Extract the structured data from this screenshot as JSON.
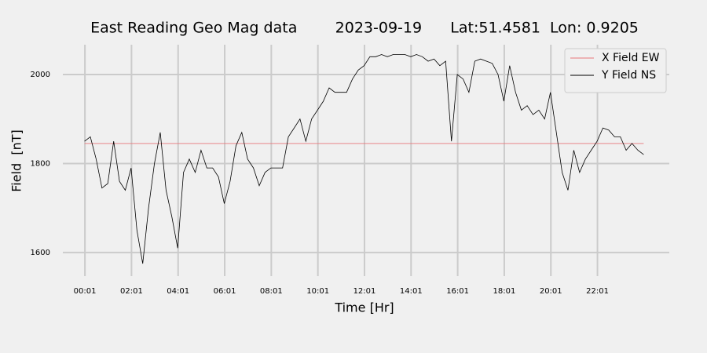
{
  "chart_data": {
    "type": "line",
    "title": "East Reading Geo Mag data        2023-09-19      Lat:51.4581  Lon: 0.9205",
    "x_label": "Time  [Hr]",
    "y_label": "Field  [nT]",
    "xlim": [
      -0.93,
      25.1
    ],
    "ylim": [
      1547,
      2067
    ],
    "xticks": [
      {
        "value": 0.017,
        "label": "00:01"
      },
      {
        "value": 2.017,
        "label": "02:01"
      },
      {
        "value": 4.017,
        "label": "04:01"
      },
      {
        "value": 6.017,
        "label": "06:01"
      },
      {
        "value": 8.017,
        "label": "08:01"
      },
      {
        "value": 10.017,
        "label": "10:01"
      },
      {
        "value": 12.017,
        "label": "12:01"
      },
      {
        "value": 14.017,
        "label": "14:01"
      },
      {
        "value": 16.017,
        "label": "16:01"
      },
      {
        "value": 18.017,
        "label": "18:01"
      },
      {
        "value": 20.017,
        "label": "20:01"
      },
      {
        "value": 22.017,
        "label": "22:01"
      }
    ],
    "yticks": [
      1600,
      1800,
      2000
    ],
    "grid": true,
    "legend": "upper right",
    "series": [
      {
        "name": "X Field EW",
        "color": "#e8767a",
        "x": [
          0,
          24
        ],
        "values": [
          1845,
          1845
        ]
      },
      {
        "name": "Y Field NS",
        "color": "#000000",
        "x": [
          0,
          0.25,
          0.5,
          0.75,
          1,
          1.25,
          1.5,
          1.75,
          2,
          2.25,
          2.5,
          2.75,
          3,
          3.25,
          3.5,
          3.75,
          4,
          4.25,
          4.5,
          4.75,
          5,
          5.25,
          5.5,
          5.75,
          6,
          6.25,
          6.5,
          6.75,
          7,
          7.25,
          7.5,
          7.75,
          8,
          8.25,
          8.5,
          8.75,
          9,
          9.25,
          9.5,
          9.75,
          10,
          10.25,
          10.5,
          10.75,
          11,
          11.25,
          11.5,
          11.75,
          12,
          12.25,
          12.5,
          12.75,
          13,
          13.25,
          13.5,
          13.75,
          14,
          14.25,
          14.5,
          14.75,
          15,
          15.25,
          15.5,
          15.75,
          16,
          16.25,
          16.5,
          16.75,
          17,
          17.25,
          17.5,
          17.75,
          18,
          18.25,
          18.5,
          18.75,
          19,
          19.25,
          19.5,
          19.75,
          20,
          20.25,
          20.5,
          20.75,
          21,
          21.25,
          21.5,
          21.75,
          22,
          22.25,
          22.5,
          22.75,
          23,
          23.25,
          23.5,
          23.75,
          24
        ],
        "values": [
          1850,
          1860,
          1810,
          1745,
          1755,
          1850,
          1760,
          1740,
          1790,
          1650,
          1575,
          1700,
          1800,
          1870,
          1740,
          1680,
          1610,
          1780,
          1810,
          1780,
          1830,
          1790,
          1790,
          1770,
          1710,
          1760,
          1840,
          1870,
          1810,
          1790,
          1750,
          1780,
          1790,
          1790,
          1790,
          1860,
          1880,
          1900,
          1850,
          1900,
          1920,
          1940,
          1970,
          1960,
          1960,
          1960,
          1990,
          2010,
          2020,
          2040,
          2040,
          2045,
          2040,
          2045,
          2045,
          2045,
          2040,
          2045,
          2040,
          2030,
          2035,
          2020,
          2030,
          1850,
          2000,
          1990,
          1960,
          2030,
          2035,
          2030,
          2025,
          2000,
          1940,
          2020,
          1960,
          1920,
          1930,
          1910,
          1920,
          1900,
          1960,
          1870,
          1780,
          1740,
          1830,
          1780,
          1810,
          1830,
          1850,
          1880,
          1875,
          1860,
          1860,
          1830,
          1845,
          1830,
          1820
        ]
      }
    ]
  }
}
